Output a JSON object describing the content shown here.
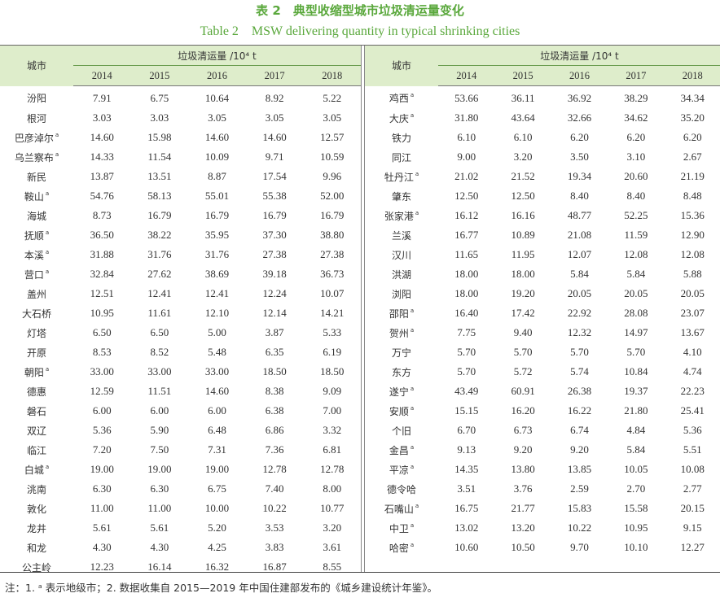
{
  "title": "表 2　典型收缩型城市垃圾清运量变化",
  "subtitle": "Table 2　MSW delivering quantity in typical shrinking cities",
  "colors": {
    "title": "#5aa83c",
    "header_bg": "#deedcb"
  },
  "header": {
    "city": "城市",
    "unit": "垃圾清运量 /10⁴ t",
    "years": [
      "2014",
      "2015",
      "2016",
      "2017",
      "2018"
    ]
  },
  "left_rows": [
    {
      "city": "汾阳",
      "mark": "",
      "values": [
        "7.91",
        "6.75",
        "10.64",
        "8.92",
        "5.22"
      ]
    },
    {
      "city": "根河",
      "mark": "",
      "values": [
        "3.03",
        "3.03",
        "3.05",
        "3.05",
        "3.05"
      ]
    },
    {
      "city": "巴彦淖尔",
      "mark": "a",
      "values": [
        "14.60",
        "15.98",
        "14.60",
        "14.60",
        "12.57"
      ]
    },
    {
      "city": "乌兰察布",
      "mark": "a",
      "values": [
        "14.33",
        "11.54",
        "10.09",
        "9.71",
        "10.59"
      ]
    },
    {
      "city": "新民",
      "mark": "",
      "values": [
        "13.87",
        "13.51",
        "8.87",
        "17.54",
        "9.96"
      ]
    },
    {
      "city": "鞍山",
      "mark": "a",
      "values": [
        "54.76",
        "58.13",
        "55.01",
        "55.38",
        "52.00"
      ]
    },
    {
      "city": "海城",
      "mark": "",
      "values": [
        "8.73",
        "16.79",
        "16.79",
        "16.79",
        "16.79"
      ]
    },
    {
      "city": "抚顺",
      "mark": "a",
      "values": [
        "36.50",
        "38.22",
        "35.95",
        "37.30",
        "38.80"
      ]
    },
    {
      "city": "本溪",
      "mark": "a",
      "values": [
        "31.88",
        "31.76",
        "31.76",
        "27.38",
        "27.38"
      ]
    },
    {
      "city": "营口",
      "mark": "a",
      "values": [
        "32.84",
        "27.62",
        "38.69",
        "39.18",
        "36.73"
      ]
    },
    {
      "city": "盖州",
      "mark": "",
      "values": [
        "12.51",
        "12.41",
        "12.41",
        "12.24",
        "10.07"
      ]
    },
    {
      "city": "大石桥",
      "mark": "",
      "values": [
        "10.95",
        "11.61",
        "12.10",
        "12.14",
        "14.21"
      ]
    },
    {
      "city": "灯塔",
      "mark": "",
      "values": [
        "6.50",
        "6.50",
        "5.00",
        "3.87",
        "5.33"
      ]
    },
    {
      "city": "开原",
      "mark": "",
      "values": [
        "8.53",
        "8.52",
        "5.48",
        "6.35",
        "6.19"
      ]
    },
    {
      "city": "朝阳",
      "mark": "a",
      "values": [
        "33.00",
        "33.00",
        "33.00",
        "18.50",
        "18.50"
      ]
    },
    {
      "city": "德惠",
      "mark": "",
      "values": [
        "12.59",
        "11.51",
        "14.60",
        "8.38",
        "9.09"
      ]
    },
    {
      "city": "磐石",
      "mark": "",
      "values": [
        "6.00",
        "6.00",
        "6.00",
        "6.38",
        "7.00"
      ]
    },
    {
      "city": "双辽",
      "mark": "",
      "values": [
        "5.36",
        "5.90",
        "6.48",
        "6.86",
        "3.32"
      ]
    },
    {
      "city": "临江",
      "mark": "",
      "values": [
        "7.20",
        "7.50",
        "7.31",
        "7.36",
        "6.81"
      ]
    },
    {
      "city": "白城",
      "mark": "a",
      "values": [
        "19.00",
        "19.00",
        "19.00",
        "12.78",
        "12.78"
      ]
    },
    {
      "city": "洮南",
      "mark": "",
      "values": [
        "6.30",
        "6.30",
        "6.75",
        "7.40",
        "8.00"
      ]
    },
    {
      "city": "敦化",
      "mark": "",
      "values": [
        "11.00",
        "11.00",
        "10.00",
        "10.22",
        "10.77"
      ]
    },
    {
      "city": "龙井",
      "mark": "",
      "values": [
        "5.61",
        "5.61",
        "5.20",
        "3.53",
        "3.20"
      ]
    },
    {
      "city": "和龙",
      "mark": "",
      "values": [
        "4.30",
        "4.30",
        "4.25",
        "3.83",
        "3.61"
      ]
    },
    {
      "city": "公主岭",
      "mark": "",
      "values": [
        "12.23",
        "16.14",
        "16.32",
        "16.87",
        "8.55"
      ]
    }
  ],
  "right_rows": [
    {
      "city": "鸡西",
      "mark": "a",
      "values": [
        "53.66",
        "36.11",
        "36.92",
        "38.29",
        "34.34"
      ]
    },
    {
      "city": "大庆",
      "mark": "a",
      "values": [
        "31.80",
        "43.64",
        "32.66",
        "34.62",
        "35.20"
      ]
    },
    {
      "city": "铁力",
      "mark": "",
      "values": [
        "6.10",
        "6.10",
        "6.20",
        "6.20",
        "6.20"
      ]
    },
    {
      "city": "同江",
      "mark": "",
      "values": [
        "9.00",
        "3.20",
        "3.50",
        "3.10",
        "2.67"
      ]
    },
    {
      "city": "牡丹江",
      "mark": "a",
      "values": [
        "21.02",
        "21.52",
        "19.34",
        "20.60",
        "21.19"
      ]
    },
    {
      "city": "肇东",
      "mark": "",
      "values": [
        "12.50",
        "12.50",
        "8.40",
        "8.40",
        "8.48"
      ]
    },
    {
      "city": "张家港",
      "mark": "a",
      "values": [
        "16.12",
        "16.16",
        "48.77",
        "52.25",
        "15.36"
      ]
    },
    {
      "city": "兰溪",
      "mark": "",
      "values": [
        "16.77",
        "10.89",
        "21.08",
        "11.59",
        "12.90"
      ]
    },
    {
      "city": "汉川",
      "mark": "",
      "values": [
        "11.65",
        "11.95",
        "12.07",
        "12.08",
        "12.08"
      ]
    },
    {
      "city": "洪湖",
      "mark": "",
      "values": [
        "18.00",
        "18.00",
        "5.84",
        "5.84",
        "5.88"
      ]
    },
    {
      "city": "浏阳",
      "mark": "",
      "values": [
        "18.00",
        "19.20",
        "20.05",
        "20.05",
        "20.05"
      ]
    },
    {
      "city": "邵阳",
      "mark": "a",
      "values": [
        "16.40",
        "17.42",
        "22.92",
        "28.08",
        "23.07"
      ]
    },
    {
      "city": "贺州",
      "mark": "a",
      "values": [
        "7.75",
        "9.40",
        "12.32",
        "14.97",
        "13.67"
      ]
    },
    {
      "city": "万宁",
      "mark": "",
      "values": [
        "5.70",
        "5.70",
        "5.70",
        "5.70",
        "4.10"
      ]
    },
    {
      "city": "东方",
      "mark": "",
      "values": [
        "5.70",
        "5.72",
        "5.74",
        "10.84",
        "4.74"
      ]
    },
    {
      "city": "遂宁",
      "mark": "a",
      "values": [
        "43.49",
        "60.91",
        "26.38",
        "19.37",
        "22.23"
      ]
    },
    {
      "city": "安顺",
      "mark": "a",
      "values": [
        "15.15",
        "16.20",
        "16.22",
        "21.80",
        "25.41"
      ]
    },
    {
      "city": "个旧",
      "mark": "",
      "values": [
        "6.70",
        "6.73",
        "6.74",
        "4.84",
        "5.36"
      ]
    },
    {
      "city": "金昌",
      "mark": "a",
      "values": [
        "9.13",
        "9.20",
        "9.20",
        "5.84",
        "5.51"
      ]
    },
    {
      "city": "平凉",
      "mark": "a",
      "values": [
        "14.35",
        "13.80",
        "13.85",
        "10.05",
        "10.08"
      ]
    },
    {
      "city": "德令哈",
      "mark": "",
      "values": [
        "3.51",
        "3.76",
        "2.59",
        "2.70",
        "2.77"
      ]
    },
    {
      "city": "石嘴山",
      "mark": "a",
      "values": [
        "16.75",
        "21.77",
        "15.83",
        "15.58",
        "20.15"
      ]
    },
    {
      "city": "中卫",
      "mark": "a",
      "values": [
        "13.02",
        "13.20",
        "10.22",
        "10.95",
        "9.15"
      ]
    },
    {
      "city": "哈密",
      "mark": "a",
      "values": [
        "10.60",
        "10.50",
        "9.70",
        "10.10",
        "12.27"
      ]
    }
  ],
  "note": "注：1. ᵃ 表示地级市；2. 数据收集自 2015—2019 年中国住建部发布的《城乡建设统计年鉴》。"
}
